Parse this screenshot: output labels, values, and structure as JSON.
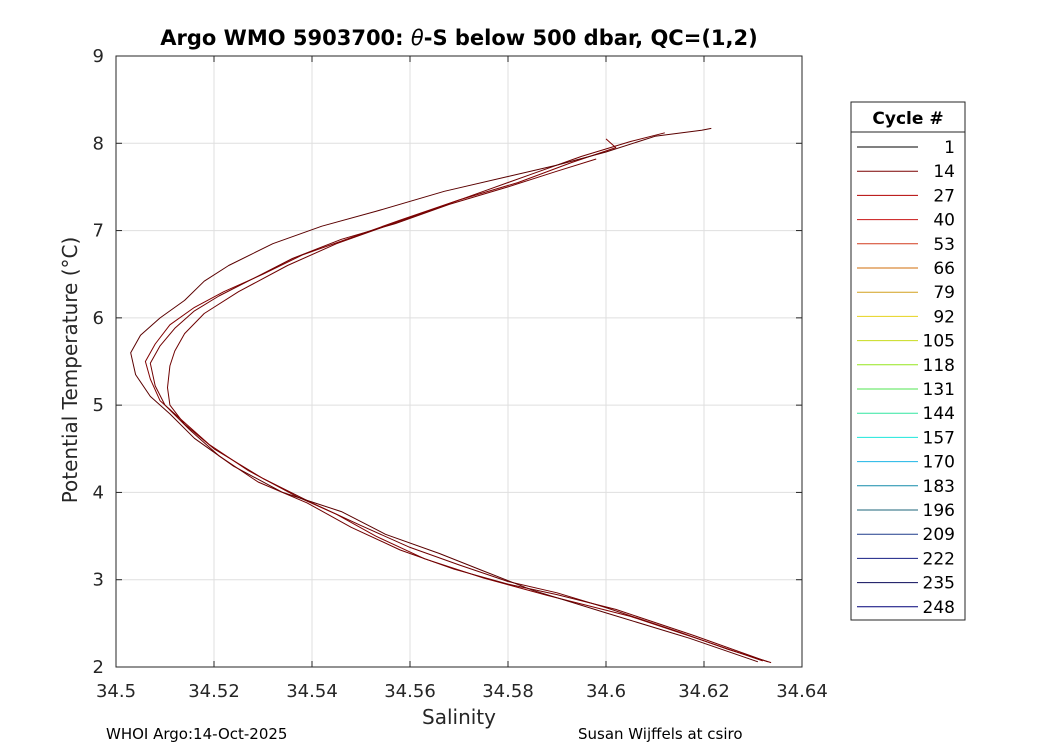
{
  "title": {
    "prefix": "Argo WMO 5903700: ",
    "theta": "θ",
    "suffix": "-S below 500 dbar,  QC=(1,2)"
  },
  "footer": {
    "left": "WHOI Argo:14-Oct-2025",
    "right": "Susan Wijffels at csiro"
  },
  "chart_data": {
    "type": "line",
    "title": "Argo WMO 5903700: θ-S below 500 dbar,  QC=(1,2)",
    "xlabel": "Salinity",
    "ylabel": "Potential Temperature (°C)",
    "xlim": [
      34.5,
      34.64
    ],
    "ylim": [
      2,
      9
    ],
    "xticks": [
      34.5,
      34.52,
      34.54,
      34.56,
      34.58,
      34.6,
      34.62,
      34.64
    ],
    "yticks": [
      2,
      3,
      4,
      5,
      6,
      7,
      8,
      9
    ],
    "xtick_labels": [
      "34.5",
      "34.52",
      "34.54",
      "34.56",
      "34.58",
      "34.6",
      "34.62",
      "34.64"
    ],
    "ytick_labels": [
      "2",
      "3",
      "4",
      "5",
      "6",
      "7",
      "8",
      "9"
    ],
    "grid": true,
    "legend": {
      "title": "Cycle #",
      "placement": "outside-right",
      "entries": [
        "1",
        "14",
        "27",
        "40",
        "53",
        "66",
        "79",
        "92",
        "105",
        "118",
        "131",
        "144",
        "157",
        "170",
        "183",
        "196",
        "209",
        "222",
        "235",
        "248"
      ],
      "colors": [
        "#000000",
        "#7a0000",
        "#b30000",
        "#c81414",
        "#d23c1e",
        "#d26e0a",
        "#d2a01e",
        "#e6d21e",
        "#c8dc1e",
        "#96e61e",
        "#50e650",
        "#32e6a0",
        "#1ee6dc",
        "#1eb4e6",
        "#148caa",
        "#1e6478",
        "#1e3c8c",
        "#141e82",
        "#0a0a5a",
        "#000078"
      ]
    },
    "series": [
      {
        "points": [
          [
            34.6337,
            2.05
          ],
          [
            34.625,
            2.2
          ],
          [
            34.615,
            2.4
          ],
          [
            34.6,
            2.68
          ],
          [
            34.59,
            2.85
          ],
          [
            34.58,
            2.98
          ],
          [
            34.57,
            3.17
          ],
          [
            34.56,
            3.37
          ],
          [
            34.55,
            3.62
          ],
          [
            34.54,
            3.88
          ],
          [
            34.53,
            4.16
          ],
          [
            34.52,
            4.5
          ],
          [
            34.514,
            4.78
          ],
          [
            34.511,
            5.0
          ],
          [
            34.5105,
            5.2
          ],
          [
            34.511,
            5.45
          ],
          [
            34.512,
            5.62
          ],
          [
            34.514,
            5.82
          ],
          [
            34.518,
            6.05
          ],
          [
            34.525,
            6.3
          ],
          [
            34.535,
            6.6
          ],
          [
            34.545,
            6.85
          ],
          [
            34.555,
            7.05
          ],
          [
            34.565,
            7.25
          ],
          [
            34.575,
            7.45
          ],
          [
            34.585,
            7.65
          ],
          [
            34.595,
            7.85
          ],
          [
            34.605,
            8.02
          ],
          [
            34.612,
            8.12
          ]
        ],
        "color": "#6e0000"
      },
      {
        "points": [
          [
            34.632,
            2.07
          ],
          [
            34.62,
            2.3
          ],
          [
            34.605,
            2.58
          ],
          [
            34.588,
            2.82
          ],
          [
            34.575,
            3.02
          ],
          [
            34.563,
            3.24
          ],
          [
            34.553,
            3.5
          ],
          [
            34.545,
            3.75
          ],
          [
            34.537,
            3.95
          ],
          [
            34.527,
            4.25
          ],
          [
            34.519,
            4.55
          ],
          [
            34.513,
            4.85
          ],
          [
            34.509,
            5.05
          ],
          [
            34.507,
            5.3
          ],
          [
            34.506,
            5.5
          ],
          [
            34.508,
            5.7
          ],
          [
            34.511,
            5.92
          ],
          [
            34.516,
            6.12
          ],
          [
            34.522,
            6.3
          ],
          [
            34.53,
            6.5
          ],
          [
            34.538,
            6.72
          ],
          [
            34.548,
            6.92
          ],
          [
            34.558,
            7.12
          ],
          [
            34.57,
            7.35
          ],
          [
            34.582,
            7.55
          ],
          [
            34.593,
            7.78
          ],
          [
            34.602,
            7.95
          ],
          [
            34.6,
            8.05
          ]
        ],
        "color": "#800000"
      },
      {
        "points": [
          [
            34.631,
            2.06
          ],
          [
            34.617,
            2.33
          ],
          [
            34.6,
            2.62
          ],
          [
            34.585,
            2.88
          ],
          [
            34.575,
            3.1
          ],
          [
            34.566,
            3.3
          ],
          [
            34.555,
            3.52
          ],
          [
            34.546,
            3.78
          ],
          [
            34.534,
            4.0
          ],
          [
            34.524,
            4.3
          ],
          [
            34.516,
            4.62
          ],
          [
            34.511,
            4.9
          ],
          [
            34.507,
            5.1
          ],
          [
            34.504,
            5.35
          ],
          [
            34.503,
            5.6
          ],
          [
            34.505,
            5.8
          ],
          [
            34.509,
            6.0
          ],
          [
            34.514,
            6.2
          ],
          [
            34.518,
            6.42
          ],
          [
            34.523,
            6.6
          ],
          [
            34.532,
            6.85
          ],
          [
            34.542,
            7.05
          ],
          [
            34.553,
            7.22
          ],
          [
            34.567,
            7.45
          ],
          [
            34.58,
            7.62
          ],
          [
            34.59,
            7.75
          ],
          [
            34.6,
            7.9
          ],
          [
            34.61,
            8.08
          ],
          [
            34.6195,
            8.15
          ],
          [
            34.6215,
            8.17
          ]
        ],
        "color": "#5a0000"
      },
      {
        "points": [
          [
            34.633,
            2.06
          ],
          [
            34.618,
            2.36
          ],
          [
            34.602,
            2.66
          ],
          [
            34.59,
            2.83
          ],
          [
            34.58,
            2.95
          ],
          [
            34.569,
            3.12
          ],
          [
            34.558,
            3.34
          ],
          [
            34.548,
            3.6
          ],
          [
            34.539,
            3.88
          ],
          [
            34.529,
            4.12
          ],
          [
            34.521,
            4.42
          ],
          [
            34.515,
            4.72
          ],
          [
            34.51,
            5.0
          ],
          [
            34.508,
            5.22
          ],
          [
            34.507,
            5.48
          ],
          [
            34.509,
            5.68
          ],
          [
            34.512,
            5.88
          ],
          [
            34.516,
            6.08
          ],
          [
            34.521,
            6.25
          ],
          [
            34.528,
            6.45
          ],
          [
            34.536,
            6.68
          ],
          [
            34.546,
            6.9
          ],
          [
            34.557,
            7.08
          ],
          [
            34.568,
            7.3
          ],
          [
            34.58,
            7.5
          ],
          [
            34.59,
            7.68
          ],
          [
            34.598,
            7.82
          ]
        ],
        "color": "#700000"
      }
    ]
  }
}
